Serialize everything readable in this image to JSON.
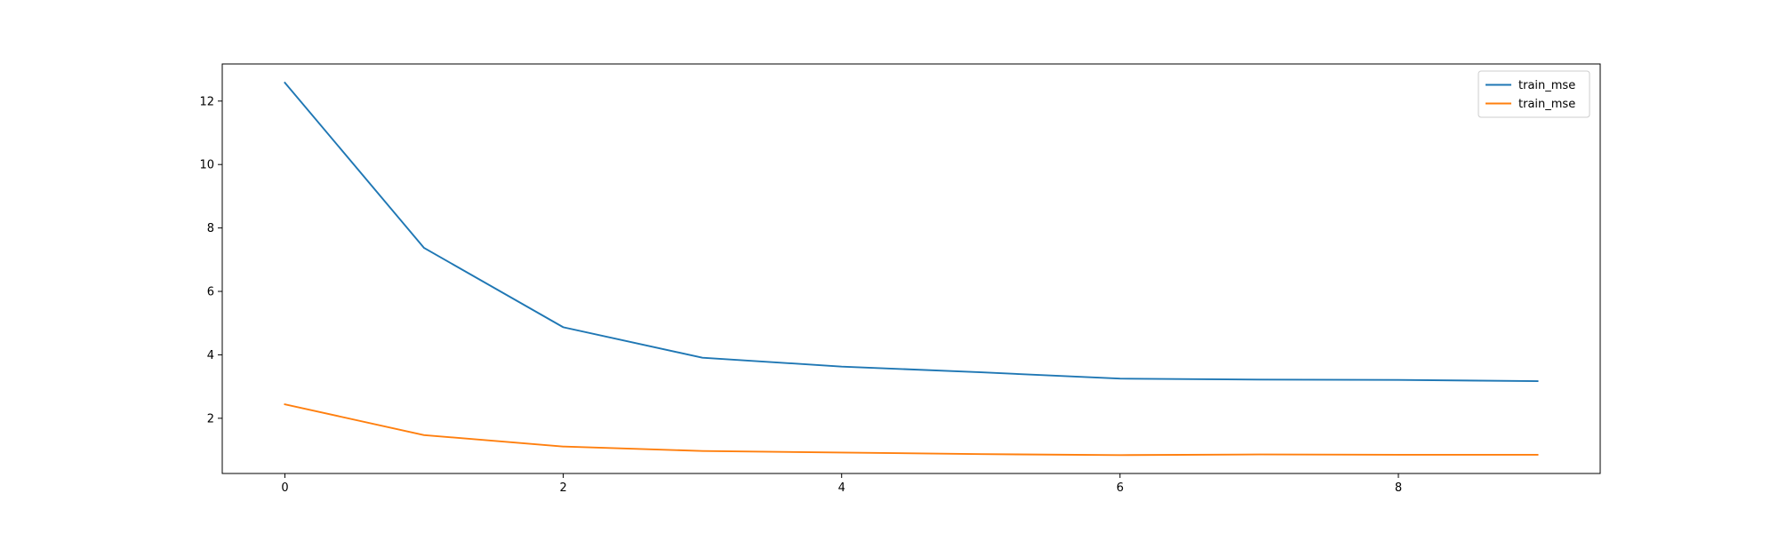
{
  "chart_data": {
    "type": "line",
    "x": [
      0,
      1,
      2,
      3,
      4,
      5,
      6,
      7,
      8,
      9
    ],
    "series": [
      {
        "name": "train_mse",
        "color": "#1f77b4",
        "values": [
          12.58,
          7.37,
          4.87,
          3.91,
          3.63,
          3.45,
          3.25,
          3.22,
          3.21,
          3.17
        ]
      },
      {
        "name": "train_mse",
        "color": "#ff7f0e",
        "values": [
          2.44,
          1.47,
          1.11,
          0.97,
          0.92,
          0.87,
          0.84,
          0.86,
          0.85,
          0.85
        ]
      }
    ],
    "xlim": [
      -0.45,
      9.45
    ],
    "ylim": [
      0.26,
      13.17
    ],
    "xticks": [
      0,
      2,
      4,
      6,
      8
    ],
    "yticks": [
      2,
      4,
      6,
      8,
      10,
      12
    ],
    "grid": false,
    "legend_position": "top-right"
  }
}
